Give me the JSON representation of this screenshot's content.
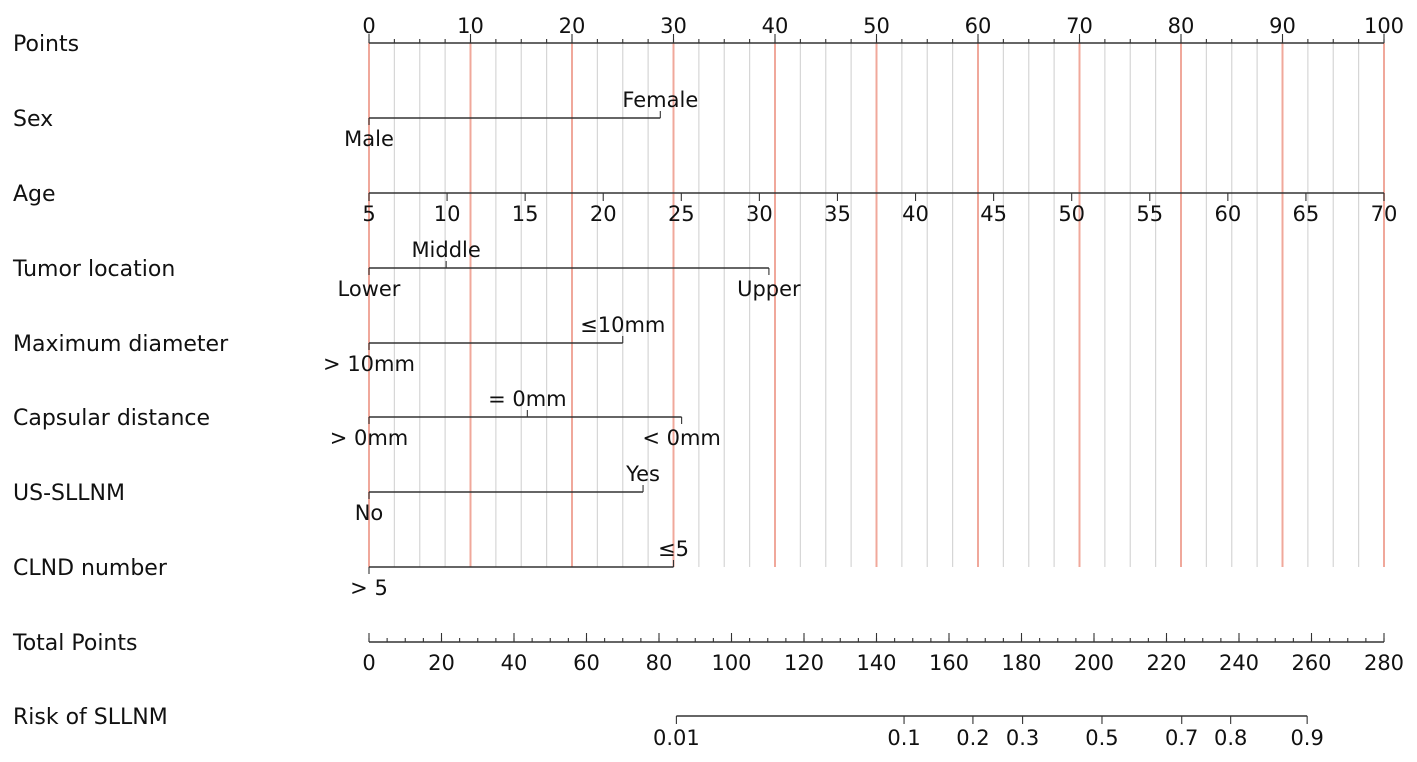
{
  "chart_data": {
    "type": "nomogram",
    "title": "",
    "points_axis": {
      "label": "Points",
      "range": [
        0,
        100
      ],
      "major_ticks": [
        0,
        10,
        20,
        30,
        40,
        50,
        60,
        70,
        80,
        90,
        100
      ],
      "minor_step": 2.5
    },
    "grid": {
      "major_every": 10,
      "minor_every": 2.5,
      "major_color": "#f0a89b",
      "minor_color": "#d6d6d6"
    },
    "variables": [
      {
        "label": "Sex",
        "type": "categorical",
        "levels": [
          {
            "name": "Male",
            "points": 0,
            "label_side": "below"
          },
          {
            "name": "Female",
            "points": 28.7,
            "label_side": "above"
          }
        ]
      },
      {
        "label": "Age",
        "type": "continuous",
        "min": 5,
        "max": 70,
        "min_points": 0,
        "max_points": 100,
        "ticks": [
          5,
          10,
          15,
          20,
          25,
          30,
          35,
          40,
          45,
          50,
          55,
          60,
          65,
          70
        ]
      },
      {
        "label": "Tumor location",
        "type": "categorical",
        "levels": [
          {
            "name": "Lower",
            "points": 0,
            "label_side": "below"
          },
          {
            "name": "Middle",
            "points": 7.6,
            "label_side": "above"
          },
          {
            "name": "Upper",
            "points": 39.4,
            "label_side": "below"
          }
        ]
      },
      {
        "label": "Maximum diameter",
        "type": "categorical",
        "levels": [
          {
            "name": "> 10mm",
            "points": 0,
            "label_side": "below"
          },
          {
            "name": "≤10mm",
            "points": 25,
            "label_side": "above"
          }
        ]
      },
      {
        "label": "Capsular distance",
        "type": "categorical",
        "levels": [
          {
            "name": "> 0mm",
            "points": 0,
            "label_side": "below"
          },
          {
            "name": "= 0mm",
            "points": 15.6,
            "label_side": "above"
          },
          {
            "name": "< 0mm",
            "points": 30.8,
            "label_side": "below"
          }
        ]
      },
      {
        "label": "US-SLLNM",
        "type": "categorical",
        "levels": [
          {
            "name": "No",
            "points": 0,
            "label_side": "below"
          },
          {
            "name": "Yes",
            "points": 27,
            "label_side": "above"
          }
        ]
      },
      {
        "label": "CLND number",
        "type": "categorical",
        "levels": [
          {
            "name": "> 5",
            "points": 0,
            "label_side": "below"
          },
          {
            "name": "≤5",
            "points": 30,
            "label_side": "above"
          }
        ]
      }
    ],
    "total_points_axis": {
      "label": "Total Points",
      "range": [
        0,
        280
      ],
      "major_ticks": [
        0,
        20,
        40,
        60,
        80,
        100,
        120,
        140,
        160,
        180,
        200,
        220,
        240,
        260,
        280
      ],
      "minor_step": 5
    },
    "risk_axis": {
      "label": "Risk of SLLNM",
      "ticks": [
        {
          "label": "0.01",
          "total_points": 84.8
        },
        {
          "label": "0.1",
          "total_points": 147.6
        },
        {
          "label": "0.2",
          "total_points": 166.6
        },
        {
          "label": "0.3",
          "total_points": 180.3
        },
        {
          "label": "0.5",
          "total_points": 202.2
        },
        {
          "label": "0.7",
          "total_points": 224.2
        },
        {
          "label": "0.8",
          "total_points": 237.7
        },
        {
          "label": "0.9",
          "total_points": 258.8
        }
      ]
    }
  }
}
